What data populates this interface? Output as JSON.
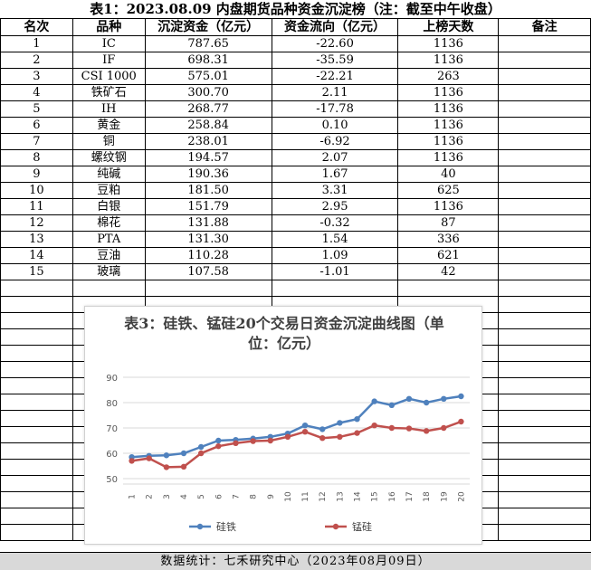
{
  "title": "表1：2023.08.09  内盘期货品种资金沉淀榜（注：截至中午收盘）",
  "headers": [
    "名次",
    "品种",
    "沉淀资金（亿元）",
    "资金流向（亿元）",
    "上榜天数",
    "备注"
  ],
  "rows": [
    [
      "1",
      "IC",
      "787.65",
      "-22.60",
      "1136",
      ""
    ],
    [
      "2",
      "IF",
      "698.31",
      "-35.59",
      "1136",
      ""
    ],
    [
      "3",
      "CSI 1000",
      "575.01",
      "-22.21",
      "263",
      ""
    ],
    [
      "4",
      "铁矿石",
      "300.70",
      "2.11",
      "1136",
      ""
    ],
    [
      "5",
      "IH",
      "268.77",
      "-17.78",
      "1136",
      ""
    ],
    [
      "6",
      "黄金",
      "258.84",
      "0.10",
      "1136",
      ""
    ],
    [
      "7",
      "铜",
      "238.01",
      "-6.92",
      "1136",
      ""
    ],
    [
      "8",
      "螺纹钢",
      "194.57",
      "2.07",
      "1136",
      ""
    ],
    [
      "9",
      "纯碱",
      "190.36",
      "1.67",
      "40",
      ""
    ],
    [
      "10",
      "豆粕",
      "181.50",
      "3.31",
      "625",
      ""
    ],
    [
      "11",
      "白银",
      "151.79",
      "2.95",
      "1136",
      ""
    ],
    [
      "12",
      "棉花",
      "131.88",
      "-0.32",
      "87",
      ""
    ],
    [
      "13",
      "PTA",
      "131.30",
      "1.54",
      "336",
      ""
    ],
    [
      "14",
      "豆油",
      "110.28",
      "1.09",
      "621",
      ""
    ],
    [
      "15",
      "玻璃",
      "107.58",
      "-1.01",
      "42",
      ""
    ]
  ],
  "footer": "数据统计：七禾研究中心（2023年08月09日）",
  "chart_data": {
    "type": "line",
    "title": "表3：硅铁、锰硅20个交易日资金沉淀曲线图（单位：亿元）",
    "xlabel": "",
    "ylabel": "",
    "categories": [
      "1",
      "2",
      "3",
      "4",
      "5",
      "6",
      "7",
      "8",
      "9",
      "10",
      "11",
      "12",
      "13",
      "14",
      "15",
      "16",
      "17",
      "18",
      "19",
      "20"
    ],
    "ylim": [
      0,
      90
    ],
    "yticks": [
      0,
      10,
      20,
      30,
      40,
      50,
      60,
      70,
      80,
      90
    ],
    "grid": true,
    "legend": "bottom",
    "series": [
      {
        "name": "硅铁",
        "color": "#4f81bd",
        "values": [
          58.5,
          59.0,
          59.2,
          60.0,
          62.5,
          65.0,
          65.3,
          65.8,
          66.5,
          67.8,
          71.0,
          69.5,
          72.0,
          73.5,
          80.5,
          79.0,
          81.5,
          80.0,
          81.5,
          82.5
        ]
      },
      {
        "name": "锰硅",
        "color": "#c0504d",
        "values": [
          57.0,
          58.0,
          54.5,
          54.7,
          60.0,
          62.8,
          64.0,
          64.8,
          65.0,
          66.5,
          68.5,
          66.0,
          66.5,
          68.0,
          71.0,
          70.0,
          69.8,
          68.8,
          70.0,
          72.5
        ]
      }
    ]
  }
}
